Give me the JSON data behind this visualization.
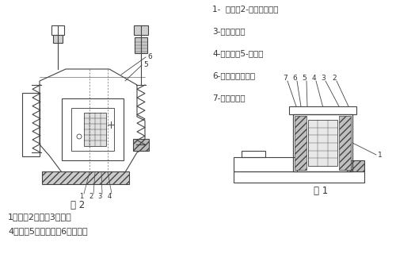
{
  "background_color": "#ffffff",
  "fig_width": 5.0,
  "fig_height": 3.2,
  "dpi": 100,
  "right_text_lines": [
    "1-  机座；2-机电磁铁芯；",
    "3-共振弹簧；",
    "4-振动体；5-线圈；",
    "6-硬橡胶冲击块；",
    "7-调整螺栓；"
  ],
  "bottom_left_line1": "1、铁芯2、衔铁3、线圈",
  "bottom_left_line2": "4、机座5、共振弹簧6、振动体",
  "fig2_label": "图 2",
  "fig1_label": "图 1",
  "line_color": "#444444",
  "text_color": "#333333"
}
